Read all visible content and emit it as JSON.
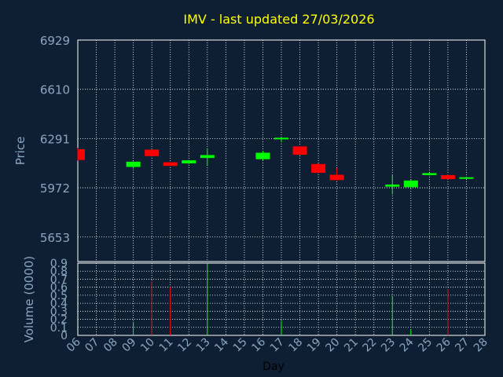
{
  "chart_data": {
    "type": "candlestick",
    "title": "IMV - last updated 27/03/2026",
    "xlabel": "Day",
    "price_panel": {
      "ylabel": "Price",
      "ylim": [
        5494,
        6929
      ],
      "yticks": [
        6929,
        6610,
        6291,
        5972,
        5653
      ],
      "grid": true
    },
    "volume_panel": {
      "ylabel": "Volume (0000)",
      "ylim": [
        0,
        0.9
      ],
      "yticks": [
        0,
        0.1,
        0.2,
        0.3,
        0.4,
        0.5,
        0.6,
        0.7,
        0.8,
        0.9
      ],
      "grid": true
    },
    "x_ticks": [
      "06",
      "07",
      "08",
      "09",
      "10",
      "11",
      "12",
      "13",
      "14",
      "15",
      "16",
      "17",
      "18",
      "19",
      "20",
      "21",
      "22",
      "23",
      "24",
      "25",
      "26",
      "27",
      "28"
    ],
    "candles": [
      {
        "day": "06",
        "open": 6222,
        "close": 6152,
        "high": 6229,
        "low": 6148,
        "color": "red"
      },
      {
        "day": "09",
        "open": 6107,
        "close": 6141,
        "high": 6143,
        "low": 6096,
        "color": "green"
      },
      {
        "day": "10",
        "open": 6219,
        "close": 6177,
        "high": 6221,
        "low": 6173,
        "color": "red"
      },
      {
        "day": "11",
        "open": 6137,
        "close": 6114,
        "high": 6139,
        "low": 6112,
        "color": "red"
      },
      {
        "day": "12",
        "open": 6130,
        "close": 6150,
        "high": 6152,
        "low": 6126,
        "color": "green"
      },
      {
        "day": "13",
        "open": 6165,
        "close": 6184,
        "high": 6224,
        "low": 6120,
        "color": "green"
      },
      {
        "day": "16",
        "open": 6157,
        "close": 6199,
        "high": 6212,
        "low": 6150,
        "color": "green"
      },
      {
        "day": "17",
        "open": 6286,
        "close": 6296,
        "high": 6301,
        "low": 6266,
        "color": "green"
      },
      {
        "day": "18",
        "open": 6240,
        "close": 6186,
        "high": 6243,
        "low": 6182,
        "color": "red"
      },
      {
        "day": "19",
        "open": 6126,
        "close": 6069,
        "high": 6130,
        "low": 6064,
        "color": "red"
      },
      {
        "day": "20",
        "open": 6056,
        "close": 6022,
        "high": 6100,
        "low": 6019,
        "color": "red"
      },
      {
        "day": "23",
        "open": 5979,
        "close": 5993,
        "high": 6058,
        "low": 5929,
        "color": "green"
      },
      {
        "day": "24",
        "open": 5976,
        "close": 6019,
        "high": 6024,
        "low": 5974,
        "color": "green"
      },
      {
        "day": "25",
        "open": 6054,
        "close": 6067,
        "high": 6069,
        "low": 6052,
        "color": "green"
      },
      {
        "day": "26",
        "open": 6054,
        "close": 6028,
        "high": 6057,
        "low": 6025,
        "color": "red"
      },
      {
        "day": "27",
        "open": 6032,
        "close": 6040,
        "high": 6043,
        "low": 6030,
        "color": "green"
      }
    ],
    "volumes": [
      {
        "day": "09",
        "value": 0.17,
        "color": "green"
      },
      {
        "day": "10",
        "value": 0.67,
        "color": "red"
      },
      {
        "day": "11",
        "value": 0.6,
        "color": "red"
      },
      {
        "day": "13",
        "value": 0.9,
        "color": "green"
      },
      {
        "day": "17",
        "value": 0.18,
        "color": "green"
      },
      {
        "day": "23",
        "value": 0.49,
        "color": "green"
      },
      {
        "day": "24",
        "value": 0.07,
        "color": "green"
      },
      {
        "day": "26",
        "value": 0.58,
        "color": "red"
      }
    ],
    "colors": {
      "background": "#0f1f33",
      "title": "#ffff00",
      "axis_text": "#8aa6c1",
      "grid": "#ffffff",
      "up": "#00ff00",
      "down": "#ff0000"
    }
  }
}
